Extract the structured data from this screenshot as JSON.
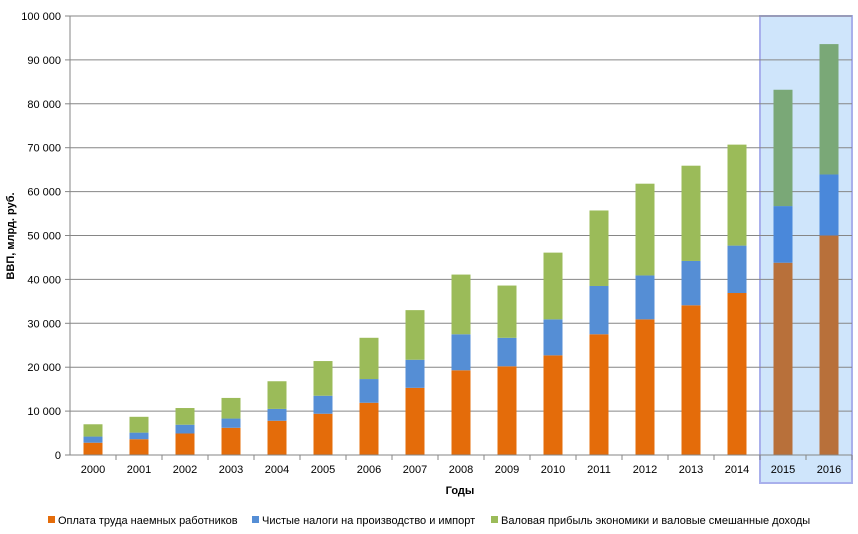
{
  "chart_data": {
    "type": "bar",
    "stacked": true,
    "xlabel": "Годы",
    "ylabel": "ВВП, млрд. руб.",
    "ylim": [
      0,
      100000
    ],
    "yticks": [
      "0",
      "10 000",
      "20 000",
      "30 000",
      "40 000",
      "50 000",
      "60 000",
      "70 000",
      "80 000",
      "90 000",
      "100 000"
    ],
    "ytick_values": [
      0,
      10000,
      20000,
      30000,
      40000,
      50000,
      60000,
      70000,
      80000,
      90000,
      100000
    ],
    "grid": true,
    "legend_position": "bottom",
    "categories": [
      "2000",
      "2001",
      "2002",
      "2003",
      "2004",
      "2005",
      "2006",
      "2007",
      "2008",
      "2009",
      "2010",
      "2011",
      "2012",
      "2013",
      "2014",
      "2015",
      "2016"
    ],
    "highlighted_categories": [
      "2015",
      "2016"
    ],
    "series": [
      {
        "name": "Оплата труда наемных работников",
        "color": "#e46c0a",
        "highlight_color": "#b8703a",
        "values": [
          2800,
          3600,
          4900,
          6200,
          7800,
          9400,
          11900,
          15300,
          19300,
          20200,
          22700,
          27500,
          30900,
          34100,
          36900,
          43800,
          50000
        ]
      },
      {
        "name": "Чистые налоги на производство и импорт",
        "color": "#558ed5",
        "highlight_color": "#4a88da",
        "values": [
          1400,
          1500,
          2000,
          2100,
          2700,
          4100,
          5400,
          6400,
          8200,
          6500,
          8200,
          11000,
          10000,
          10100,
          10800,
          12900,
          13900
        ]
      },
      {
        "name": "Валовая прибыль экономики и валовые смешанные доходы",
        "color": "#9bbb59",
        "highlight_color": "#7aa877",
        "values": [
          2800,
          3600,
          3800,
          4700,
          6300,
          7900,
          9400,
          11300,
          13600,
          11900,
          15200,
          17200,
          20900,
          21700,
          23000,
          26500,
          29700
        ]
      }
    ]
  }
}
